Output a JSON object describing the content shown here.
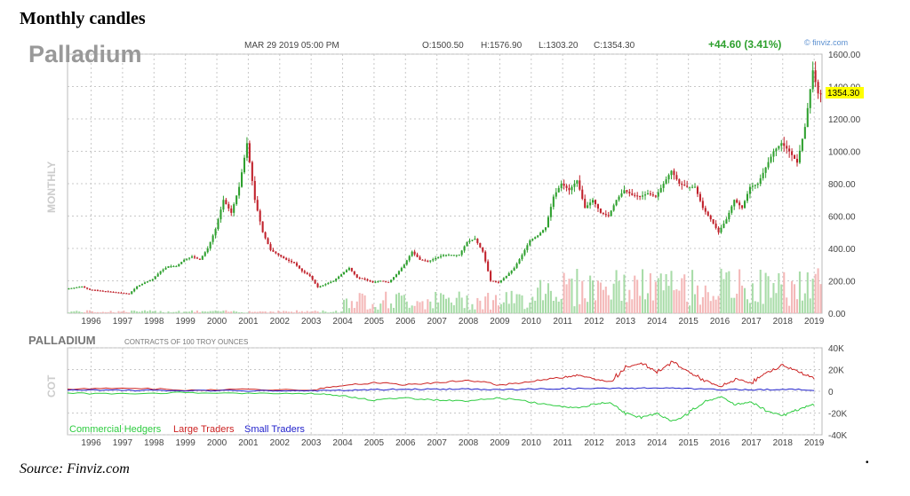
{
  "figure": {
    "title": "Monthly candles",
    "caption": "Source: Finviz.com"
  },
  "header": {
    "symbol": "Palladium",
    "datetime": "MAR 29 2019 05:00 PM",
    "open": "O:1500.50",
    "high": "H:1576.90",
    "low": "L:1303.20",
    "close": "C:1354.30",
    "change": "+44.60 (3.41%)",
    "brand": "© finviz.com",
    "side_label": "MONTHLY",
    "last_price": "1354.30"
  },
  "cot": {
    "title": "PALLADIUM",
    "subtitle": "CONTRACTS OF 100 TROY OUNCES",
    "side_label": "COT"
  },
  "colors": {
    "up": "#2ea02e",
    "down": "#c0202a",
    "vol_up": "#a8dca8",
    "vol_down": "#f4b8b8",
    "commercial": "#2ecc40",
    "large": "#cc2222",
    "small": "#2222cc",
    "grid": "#c8c8c8",
    "highlight": "#ffff00"
  },
  "chart_data": [
    {
      "type": "candlestick",
      "title": "Palladium",
      "xlabel": "",
      "ylabel": "",
      "ylim": [
        0,
        1600
      ],
      "yticks": [
        "0.00",
        "200.00",
        "400.00",
        "600.00",
        "800.00",
        "1000.00",
        "1200.00",
        "1400.00",
        "1600.00"
      ],
      "xticks": [
        "1996",
        "1997",
        "1998",
        "1999",
        "2000",
        "2001",
        "2002",
        "2003",
        "2004",
        "2005",
        "2006",
        "2007",
        "2008",
        "2009",
        "2010",
        "2011",
        "2012",
        "2013",
        "2014",
        "2015",
        "2016",
        "2017",
        "2018",
        "2019"
      ],
      "grid": true,
      "series": [
        {
          "name": "price",
          "points": [
            [
              1995.25,
              150
            ],
            [
              1995.75,
              165
            ],
            [
              1996.0,
              145
            ],
            [
              1996.5,
              135
            ],
            [
              1997.0,
              125
            ],
            [
              1997.25,
              120
            ],
            [
              1997.5,
              165
            ],
            [
              1997.75,
              190
            ],
            [
              1998.0,
              210
            ],
            [
              1998.25,
              260
            ],
            [
              1998.5,
              290
            ],
            [
              1998.75,
              290
            ],
            [
              1999.0,
              330
            ],
            [
              1999.25,
              350
            ],
            [
              1999.5,
              330
            ],
            [
              1999.75,
              400
            ],
            [
              2000.0,
              520
            ],
            [
              2000.25,
              700
            ],
            [
              2000.5,
              620
            ],
            [
              2000.75,
              780
            ],
            [
              2001.0,
              1050
            ],
            [
              2001.25,
              700
            ],
            [
              2001.5,
              500
            ],
            [
              2001.75,
              390
            ],
            [
              2002.0,
              360
            ],
            [
              2002.25,
              330
            ],
            [
              2002.5,
              310
            ],
            [
              2002.75,
              260
            ],
            [
              2003.0,
              230
            ],
            [
              2003.25,
              160
            ],
            [
              2003.5,
              180
            ],
            [
              2003.75,
              200
            ],
            [
              2004.0,
              240
            ],
            [
              2004.25,
              280
            ],
            [
              2004.5,
              220
            ],
            [
              2004.75,
              210
            ],
            [
              2005.0,
              190
            ],
            [
              2005.25,
              200
            ],
            [
              2005.5,
              190
            ],
            [
              2005.75,
              240
            ],
            [
              2006.0,
              300
            ],
            [
              2006.25,
              380
            ],
            [
              2006.5,
              330
            ],
            [
              2006.75,
              320
            ],
            [
              2007.0,
              340
            ],
            [
              2007.25,
              360
            ],
            [
              2007.5,
              360
            ],
            [
              2007.75,
              360
            ],
            [
              2008.0,
              440
            ],
            [
              2008.25,
              460
            ],
            [
              2008.5,
              380
            ],
            [
              2008.75,
              200
            ],
            [
              2009.0,
              190
            ],
            [
              2009.25,
              230
            ],
            [
              2009.5,
              280
            ],
            [
              2009.75,
              360
            ],
            [
              2010.0,
              450
            ],
            [
              2010.25,
              480
            ],
            [
              2010.5,
              530
            ],
            [
              2010.75,
              720
            ],
            [
              2011.0,
              800
            ],
            [
              2011.25,
              760
            ],
            [
              2011.5,
              820
            ],
            [
              2011.75,
              650
            ],
            [
              2012.0,
              700
            ],
            [
              2012.25,
              620
            ],
            [
              2012.5,
              600
            ],
            [
              2012.75,
              700
            ],
            [
              2013.0,
              760
            ],
            [
              2013.25,
              730
            ],
            [
              2013.5,
              720
            ],
            [
              2013.75,
              740
            ],
            [
              2014.0,
              720
            ],
            [
              2014.25,
              800
            ],
            [
              2014.5,
              880
            ],
            [
              2014.75,
              800
            ],
            [
              2015.0,
              780
            ],
            [
              2015.25,
              780
            ],
            [
              2015.5,
              650
            ],
            [
              2015.75,
              580
            ],
            [
              2016.0,
              500
            ],
            [
              2016.25,
              580
            ],
            [
              2016.5,
              700
            ],
            [
              2016.75,
              650
            ],
            [
              2017.0,
              780
            ],
            [
              2017.25,
              800
            ],
            [
              2017.5,
              900
            ],
            [
              2017.75,
              1000
            ],
            [
              2018.0,
              1050
            ],
            [
              2018.25,
              1000
            ],
            [
              2018.5,
              930
            ],
            [
              2018.75,
              1150
            ],
            [
              2019.0,
              1500
            ],
            [
              2019.17,
              1354.3
            ]
          ]
        }
      ]
    },
    {
      "type": "line",
      "title": "PALLADIUM",
      "subtitle": "CONTRACTS OF 100 TROY OUNCES",
      "xlabel": "",
      "ylabel": "",
      "ylim": [
        -40000,
        40000
      ],
      "yticks": [
        "40K",
        "20K",
        "0",
        "-20K",
        "-40K"
      ],
      "xticks": [
        "1996",
        "1997",
        "1998",
        "1999",
        "2000",
        "2001",
        "2002",
        "2003",
        "2004",
        "2005",
        "2006",
        "2007",
        "2008",
        "2009",
        "2010",
        "2011",
        "2012",
        "2013",
        "2014",
        "2015",
        "2016",
        "2017",
        "2018",
        "2019"
      ],
      "grid": true,
      "legend": "bottom-left",
      "series": [
        {
          "name": "Commercial Hedgers",
          "points": [
            [
              1995.25,
              -1500
            ],
            [
              1997,
              -2500
            ],
            [
              1999,
              -1000
            ],
            [
              2001,
              -2000
            ],
            [
              2003,
              -2000
            ],
            [
              2004,
              -4000
            ],
            [
              2005,
              -8000
            ],
            [
              2006,
              -6000
            ],
            [
              2007,
              -8000
            ],
            [
              2008,
              -9000
            ],
            [
              2009,
              -6000
            ],
            [
              2010,
              -10000
            ],
            [
              2011,
              -14000
            ],
            [
              2011.5,
              -15000
            ],
            [
              2012,
              -12000
            ],
            [
              2012.5,
              -10000
            ],
            [
              2013,
              -20000
            ],
            [
              2013.5,
              -24000
            ],
            [
              2014,
              -20000
            ],
            [
              2014.5,
              -28000
            ],
            [
              2015,
              -20000
            ],
            [
              2015.5,
              -10000
            ],
            [
              2016,
              -5000
            ],
            [
              2016.5,
              -12000
            ],
            [
              2017,
              -10000
            ],
            [
              2017.5,
              -18000
            ],
            [
              2018,
              -22000
            ],
            [
              2018.5,
              -17000
            ],
            [
              2019,
              -12000
            ]
          ]
        },
        {
          "name": "Large Traders",
          "points": [
            [
              1995.25,
              2000
            ],
            [
              1997,
              3000
            ],
            [
              1999,
              1000
            ],
            [
              2001,
              2000
            ],
            [
              2003,
              1000
            ],
            [
              2004,
              5000
            ],
            [
              2005,
              8000
            ],
            [
              2006,
              6000
            ],
            [
              2007,
              8000
            ],
            [
              2008,
              10000
            ],
            [
              2009,
              6000
            ],
            [
              2010,
              9000
            ],
            [
              2011,
              13000
            ],
            [
              2011.5,
              15000
            ],
            [
              2012,
              11000
            ],
            [
              2012.5,
              9000
            ],
            [
              2013,
              22000
            ],
            [
              2013.5,
              26000
            ],
            [
              2014,
              18000
            ],
            [
              2014.5,
              27000
            ],
            [
              2015,
              18000
            ],
            [
              2015.5,
              10000
            ],
            [
              2016,
              4000
            ],
            [
              2016.5,
              11000
            ],
            [
              2017,
              8000
            ],
            [
              2017.5,
              17000
            ],
            [
              2018,
              24000
            ],
            [
              2018.5,
              18000
            ],
            [
              2019,
              12000
            ]
          ]
        },
        {
          "name": "Small Traders",
          "points": [
            [
              1995.25,
              1000
            ],
            [
              1997,
              1000
            ],
            [
              1999,
              500
            ],
            [
              2001,
              500
            ],
            [
              2003,
              500
            ],
            [
              2004,
              800
            ],
            [
              2005,
              1500
            ],
            [
              2006,
              1800
            ],
            [
              2007,
              2000
            ],
            [
              2008,
              2000
            ],
            [
              2009,
              1500
            ],
            [
              2010,
              2000
            ],
            [
              2011,
              2500
            ],
            [
              2012,
              2500
            ],
            [
              2013,
              2800
            ],
            [
              2014,
              3000
            ],
            [
              2015,
              2500
            ],
            [
              2016,
              1500
            ],
            [
              2017,
              1500
            ],
            [
              2018,
              1800
            ],
            [
              2019,
              1200
            ]
          ]
        }
      ]
    }
  ]
}
